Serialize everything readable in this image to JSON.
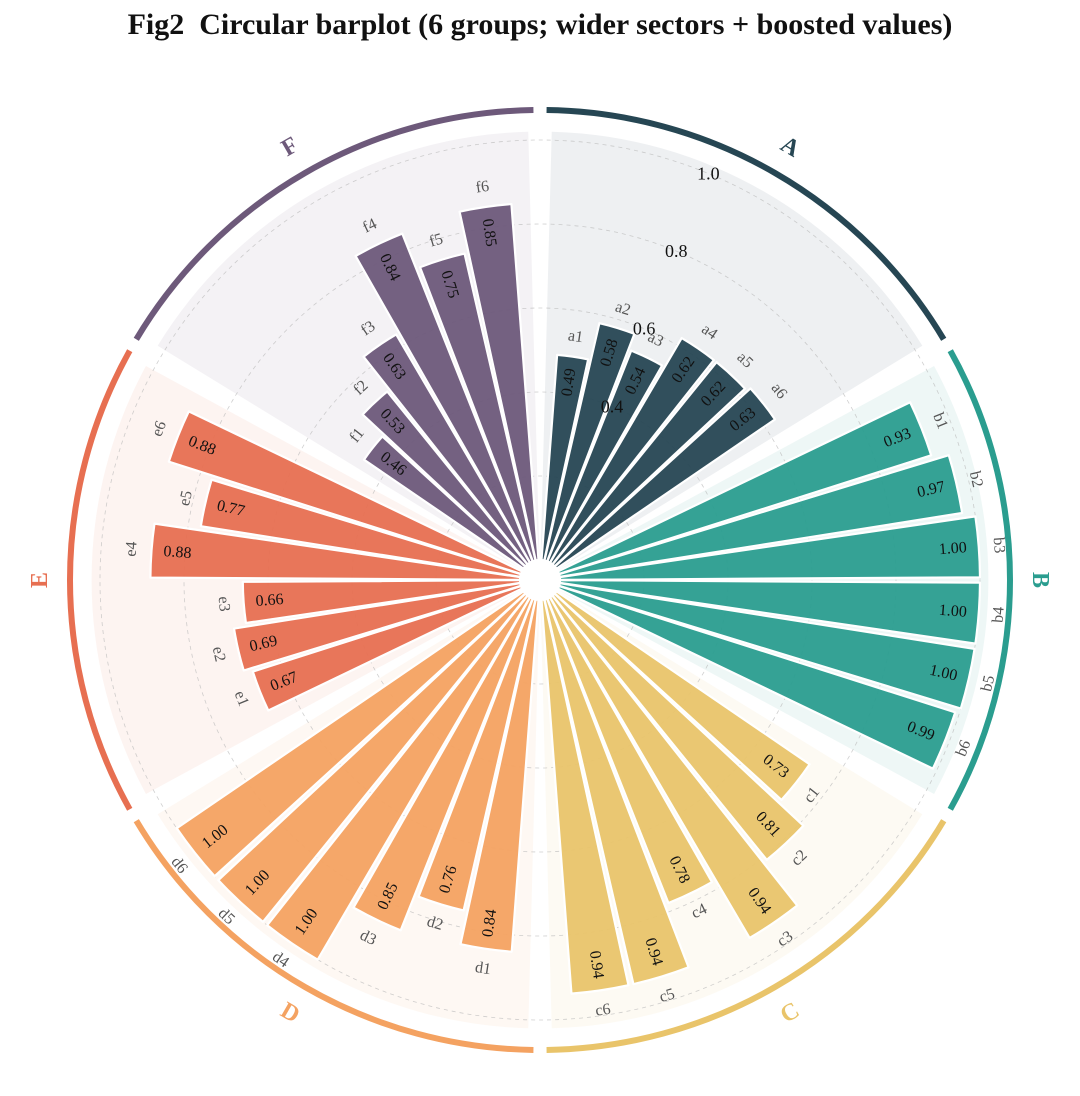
{
  "chart_data": {
    "type": "bar",
    "projection": "polar",
    "title": "Fig2  Circular barplot (6 groups; wider sectors + boosted values)",
    "ylim": [
      0,
      1.0
    ],
    "radial_tick_labels": [
      "0.4",
      "0.6",
      "0.8",
      "1.0"
    ],
    "radial_grid_values": [
      0.2,
      0.4,
      0.6,
      0.8,
      1.0
    ],
    "groups": [
      {
        "name": "A",
        "color": "#264653",
        "categories": [
          "a1",
          "a2",
          "a3",
          "a4",
          "a5",
          "a6"
        ],
        "values": [
          0.49,
          0.58,
          0.54,
          0.62,
          0.62,
          0.63
        ]
      },
      {
        "name": "B",
        "color": "#2a9d8f",
        "categories": [
          "b1",
          "b2",
          "b3",
          "b4",
          "b5",
          "b6"
        ],
        "values": [
          0.93,
          0.97,
          1.0,
          1.0,
          1.0,
          0.99
        ]
      },
      {
        "name": "C",
        "color": "#e9c46a",
        "categories": [
          "c1",
          "c2",
          "c3",
          "c4",
          "c5",
          "c6"
        ],
        "values": [
          0.73,
          0.81,
          0.94,
          0.78,
          0.94,
          0.94
        ]
      },
      {
        "name": "D",
        "color": "#f4a261",
        "categories": [
          "d1",
          "d2",
          "d3",
          "d4",
          "d5",
          "d6"
        ],
        "values": [
          0.84,
          0.76,
          0.85,
          1.0,
          1.0,
          1.0
        ]
      },
      {
        "name": "E",
        "color": "#e76f51",
        "categories": [
          "e1",
          "e2",
          "e3",
          "e4",
          "e5",
          "e6"
        ],
        "values": [
          0.67,
          0.69,
          0.66,
          0.88,
          0.77,
          0.88
        ]
      },
      {
        "name": "F",
        "color": "#6d597a",
        "categories": [
          "f1",
          "f2",
          "f3",
          "f4",
          "f5",
          "f6"
        ],
        "values": [
          0.46,
          0.53,
          0.63,
          0.84,
          0.75,
          0.85
        ]
      }
    ]
  }
}
